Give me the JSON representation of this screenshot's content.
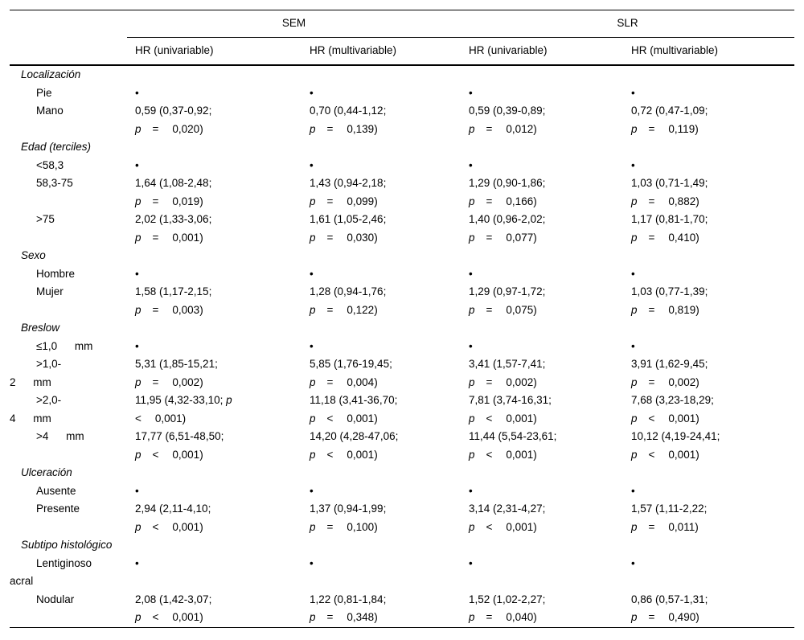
{
  "table": {
    "groups": [
      "SEM",
      "SLR"
    ],
    "columns": [
      "HR (univariable)",
      "HR (multivariable)",
      "HR (univariable)",
      "HR (multivariable)"
    ],
    "bullet": "•",
    "sections": [
      {
        "header": "Localización",
        "rows": [
          {
            "label": [
              "Pie"
            ],
            "cells": [
              {
                "v": "•"
              },
              {
                "v": "•"
              },
              {
                "v": "•"
              },
              {
                "v": "•"
              }
            ]
          },
          {
            "label": [
              "Mano"
            ],
            "cells": [
              {
                "v": "0,59 (0,37-0,92;",
                "op": "=",
                "val": "0,020)"
              },
              {
                "v": "0,70 (0,44-1,12;",
                "op": "=",
                "val": "0,139)"
              },
              {
                "v": "0,59 (0,39-0,89;",
                "op": "=",
                "val": "0,012)"
              },
              {
                "v": "0,72 (0,47-1,09;",
                "op": "=",
                "val": "0,119)"
              }
            ]
          }
        ]
      },
      {
        "header": "Edad (terciles)",
        "rows": [
          {
            "label": [
              "<58,3"
            ],
            "cells": [
              {
                "v": "•"
              },
              {
                "v": "•"
              },
              {
                "v": "•"
              },
              {
                "v": "•"
              }
            ]
          },
          {
            "label": [
              "58,3-75"
            ],
            "cells": [
              {
                "v": "1,64 (1,08-2,48;",
                "op": "=",
                "val": "0,019)"
              },
              {
                "v": "1,43 (0,94-2,18;",
                "op": "=",
                "val": "0,099)"
              },
              {
                "v": "1,29 (0,90-1,86;",
                "op": "=",
                "val": "0,166)"
              },
              {
                "v": "1,03 (0,71-1,49;",
                "op": "=",
                "val": "0,882)"
              }
            ]
          },
          {
            "label": [
              ">75"
            ],
            "cells": [
              {
                "v": "2,02 (1,33-3,06;",
                "op": "=",
                "val": "0,001)"
              },
              {
                "v": "1,61 (1,05-2,46;",
                "op": "=",
                "val": "0,030)"
              },
              {
                "v": "1,40 (0,96-2,02;",
                "op": "=",
                "val": "0,077)"
              },
              {
                "v": "1,17 (0,81-1,70;",
                "op": "=",
                "val": "0,410)"
              }
            ]
          }
        ]
      },
      {
        "header": "Sexo",
        "rows": [
          {
            "label": [
              "Hombre"
            ],
            "cells": [
              {
                "v": "•"
              },
              {
                "v": "•"
              },
              {
                "v": "•"
              },
              {
                "v": "•"
              }
            ]
          },
          {
            "label": [
              "Mujer"
            ],
            "cells": [
              {
                "v": "1,58 (1,17-2,15;",
                "op": "=",
                "val": "0,003)"
              },
              {
                "v": "1,28 (0,94-1,76;",
                "op": "=",
                "val": "0,122)"
              },
              {
                "v": "1,29 (0,97-1,72;",
                "op": "=",
                "val": "0,075)"
              },
              {
                "v": "1,03 (0,77-1,39;",
                "op": "=",
                "val": "0,819)"
              }
            ]
          }
        ]
      },
      {
        "header": "Breslow",
        "rows": [
          {
            "label": [
              "≤1,0 mm"
            ],
            "cells": [
              {
                "v": "•"
              },
              {
                "v": "•"
              },
              {
                "v": "•"
              },
              {
                "v": "•"
              }
            ]
          },
          {
            "label": [
              ">1,0-",
              "2 mm"
            ],
            "cells": [
              {
                "v": "5,31 (1,85-15,21;",
                "op": "=",
                "val": "0,002)"
              },
              {
                "v": "5,85 (1,76-19,45;",
                "op": "=",
                "val": "0,004)"
              },
              {
                "v": "3,41 (1,57-7,41;",
                "op": "=",
                "val": "0,002)"
              },
              {
                "v": "3,91 (1,62-9,45;",
                "op": "=",
                "val": "0,002)"
              }
            ]
          },
          {
            "label": [
              ">2,0-",
              "4 mm"
            ],
            "cells": [
              {
                "v": "11,95 (4,32-33,10;",
                "p1": true,
                "op": "<",
                "val": "0,001)"
              },
              {
                "v": "11,18 (3,41-36,70;",
                "op": "<",
                "val": "0,001)"
              },
              {
                "v": "7,81 (3,74-16,31;",
                "op": "<",
                "val": "0,001)"
              },
              {
                "v": "7,68 (3,23-18,29;",
                "op": "<",
                "val": "0,001)"
              }
            ]
          },
          {
            "label": [
              ">4 mm"
            ],
            "cells": [
              {
                "v": "17,77 (6,51-48,50;",
                "op": "<",
                "val": "0,001)"
              },
              {
                "v": "14,20 (4,28-47,06;",
                "op": "<",
                "val": "0,001)"
              },
              {
                "v": "11,44 (5,54-23,61;",
                "op": "<",
                "val": "0,001)"
              },
              {
                "v": "10,12 (4,19-24,41;",
                "op": "<",
                "val": "0,001)"
              }
            ]
          }
        ]
      },
      {
        "header": "Ulceración",
        "rows": [
          {
            "label": [
              "Ausente"
            ],
            "cells": [
              {
                "v": "•"
              },
              {
                "v": "•"
              },
              {
                "v": "•"
              },
              {
                "v": "•"
              }
            ]
          },
          {
            "label": [
              "Presente"
            ],
            "cells": [
              {
                "v": "2,94 (2,11-4,10;",
                "op": "<",
                "val": "0,001)"
              },
              {
                "v": "1,37 (0,94-1,99;",
                "op": "=",
                "val": "0,100)"
              },
              {
                "v": "3,14 (2,31-4,27;",
                "op": "<",
                "val": "0,001)"
              },
              {
                "v": "1,57 (1,11-2,22;",
                "op": "=",
                "val": "0,011)"
              }
            ]
          }
        ]
      },
      {
        "header": "Subtipo histológico",
        "rows": [
          {
            "label": [
              "Lentiginoso",
              "acral"
            ],
            "cells": [
              {
                "v": "•"
              },
              {
                "v": "•"
              },
              {
                "v": "•"
              },
              {
                "v": "•"
              }
            ]
          },
          {
            "label": [
              "Nodular"
            ],
            "cells": [
              {
                "v": "2,08 (1,42-3,07;",
                "op": "<",
                "val": "0,001)"
              },
              {
                "v": "1,22 (0,81-1,84;",
                "op": "=",
                "val": "0,348)"
              },
              {
                "v": "1,52 (1,02-2,27;",
                "op": "=",
                "val": "0,040)"
              },
              {
                "v": "0,86 (0,57-1,31;",
                "op": "=",
                "val": "0,490)"
              }
            ]
          }
        ]
      }
    ]
  }
}
